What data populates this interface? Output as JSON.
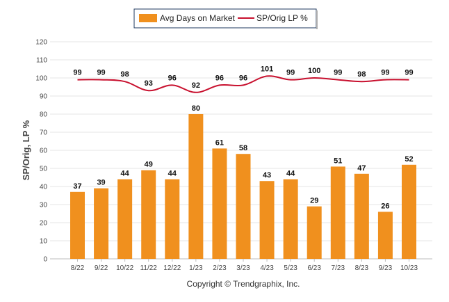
{
  "chart_data": {
    "type": "bar",
    "categories": [
      "8/22",
      "9/22",
      "10/22",
      "11/22",
      "12/22",
      "1/23",
      "2/23",
      "3/23",
      "4/23",
      "5/23",
      "6/23",
      "7/23",
      "8/23",
      "9/23",
      "10/23"
    ],
    "series": [
      {
        "name": "Avg Days on Market",
        "type": "bar",
        "values": [
          37,
          39,
          44,
          49,
          44,
          80,
          61,
          58,
          43,
          44,
          29,
          51,
          47,
          26,
          52
        ]
      },
      {
        "name": "SP/Orig LP %",
        "type": "line",
        "values": [
          99,
          99,
          98,
          93,
          96,
          92,
          96,
          96,
          101,
          99,
          100,
          99,
          98,
          99,
          99
        ]
      }
    ],
    "ylabel": "SP/Orig, LP %",
    "ylim": [
      0,
      120
    ],
    "yticks": [
      0,
      10,
      20,
      30,
      40,
      50,
      60,
      70,
      80,
      90,
      100,
      110,
      120
    ],
    "grid": true,
    "legend_position": "top-center",
    "colors": {
      "bar": "#f0901e",
      "line": "#c8102e",
      "grid": "#e6e6e6"
    }
  },
  "credit": "Copyright © Trendgraphix, Inc."
}
